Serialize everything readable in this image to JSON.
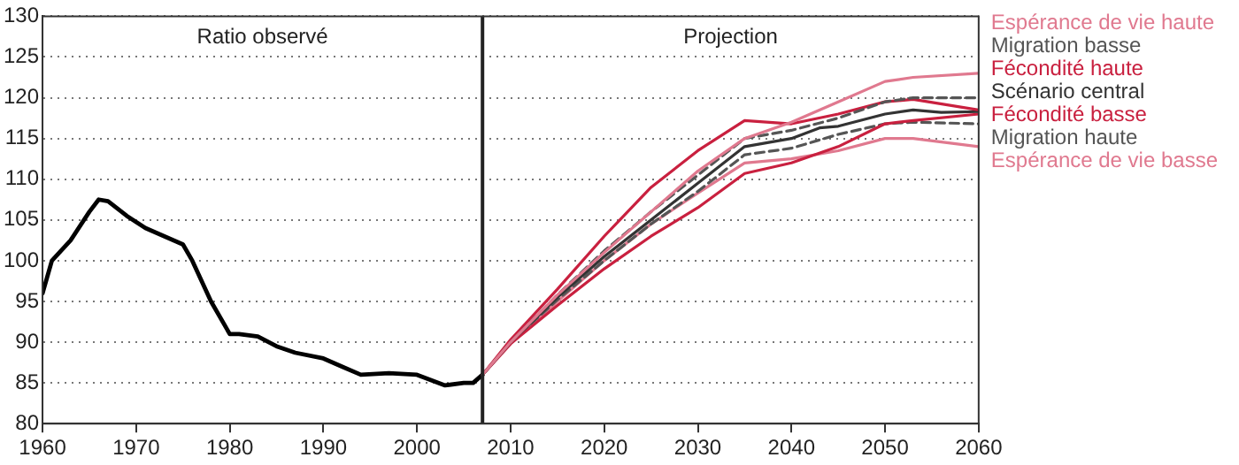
{
  "chart_data": {
    "type": "line",
    "xlim": [
      1960,
      2060
    ],
    "xticks": [
      1960,
      1970,
      1980,
      1990,
      2000,
      2010,
      2020,
      2030,
      2040,
      2050,
      2060
    ],
    "ylim": [
      80,
      130
    ],
    "yticks": [
      80,
      85,
      90,
      95,
      100,
      105,
      110,
      115,
      120,
      125,
      130
    ],
    "grid": "y",
    "legend": "right",
    "marker": "none",
    "annotations": [
      "Ratio observé",
      "Projection"
    ],
    "ref_lines": [
      {
        "axis": "x",
        "value": 2007,
        "label": null,
        "color": "#222222"
      }
    ],
    "series": [
      {
        "name": "Espérance de vie haute",
        "color": "#e0798f",
        "x": [
          2007,
          2010,
          2015,
          2020,
          2025,
          2030,
          2035,
          2040,
          2045,
          2050,
          2053,
          2060
        ],
        "values": [
          86,
          90,
          95.8,
          101,
          106,
          111,
          115,
          117,
          119.5,
          122,
          122.5,
          123
        ]
      },
      {
        "name": "Migration basse",
        "color": "#555555",
        "line_style": "dashed",
        "x": [
          2007,
          2010,
          2015,
          2020,
          2025,
          2030,
          2035,
          2040,
          2045,
          2050,
          2053,
          2060
        ],
        "values": [
          86,
          90,
          95.8,
          101.2,
          106,
          110.5,
          115,
          116,
          117.5,
          119.5,
          120,
          120
        ]
      },
      {
        "name": "Fécondité haute",
        "color": "#c9203f",
        "x": [
          2007,
          2010,
          2015,
          2020,
          2025,
          2030,
          2035,
          2040,
          2045,
          2050,
          2053,
          2060
        ],
        "values": [
          86,
          90.3,
          96.5,
          103,
          109,
          113.5,
          117.2,
          116.8,
          118,
          119.5,
          119.8,
          118.5
        ]
      },
      {
        "name": "Scénario central",
        "color": "#333333",
        "x": [
          2007,
          2010,
          2015,
          2020,
          2025,
          2030,
          2035,
          2040,
          2043,
          2045,
          2050,
          2053,
          2056,
          2060
        ],
        "values": [
          86,
          90,
          95.5,
          100.5,
          105,
          109.5,
          114,
          115,
          116.3,
          116.5,
          118,
          118.5,
          118.2,
          118.3
        ]
      },
      {
        "name": "Fécondité basse",
        "color": "#c9203f",
        "x": [
          2007,
          2010,
          2015,
          2020,
          2025,
          2030,
          2035,
          2040,
          2045,
          2050,
          2053,
          2060
        ],
        "values": [
          86,
          89.8,
          94.5,
          99,
          103,
          106.5,
          110.7,
          112,
          114,
          116.8,
          117.2,
          118
        ]
      },
      {
        "name": "Migration haute",
        "color": "#555555",
        "line_style": "dashed",
        "x": [
          2007,
          2010,
          2015,
          2020,
          2025,
          2030,
          2035,
          2040,
          2045,
          2050,
          2053,
          2060
        ],
        "values": [
          86,
          90,
          95.2,
          100,
          104.5,
          108.5,
          113,
          113.8,
          115.5,
          116.8,
          117,
          116.8
        ]
      },
      {
        "name": "Espérance de vie basse",
        "color": "#e0798f",
        "x": [
          2007,
          2010,
          2015,
          2020,
          2025,
          2030,
          2035,
          2040,
          2045,
          2050,
          2053,
          2060
        ],
        "values": [
          86,
          89.8,
          95,
          100,
          104.5,
          108.3,
          112,
          112.5,
          113.5,
          115,
          115,
          114
        ]
      },
      {
        "color": "#000000",
        "x": [
          1960,
          1961,
          1963,
          1965,
          1966,
          1967,
          1969,
          1971,
          1973,
          1975,
          1976,
          1978,
          1980,
          1981,
          1983,
          1985,
          1987,
          1990,
          1992,
          1994,
          1997,
          2000,
          2003,
          2005,
          2006,
          2007
        ],
        "values": [
          96,
          100,
          102.5,
          106,
          107.5,
          107.3,
          105.5,
          104,
          103,
          102,
          100,
          95,
          91,
          91,
          90.7,
          89.5,
          88.7,
          88,
          87,
          86,
          86.2,
          86,
          84.7,
          85,
          85,
          86
        ]
      }
    ]
  }
}
